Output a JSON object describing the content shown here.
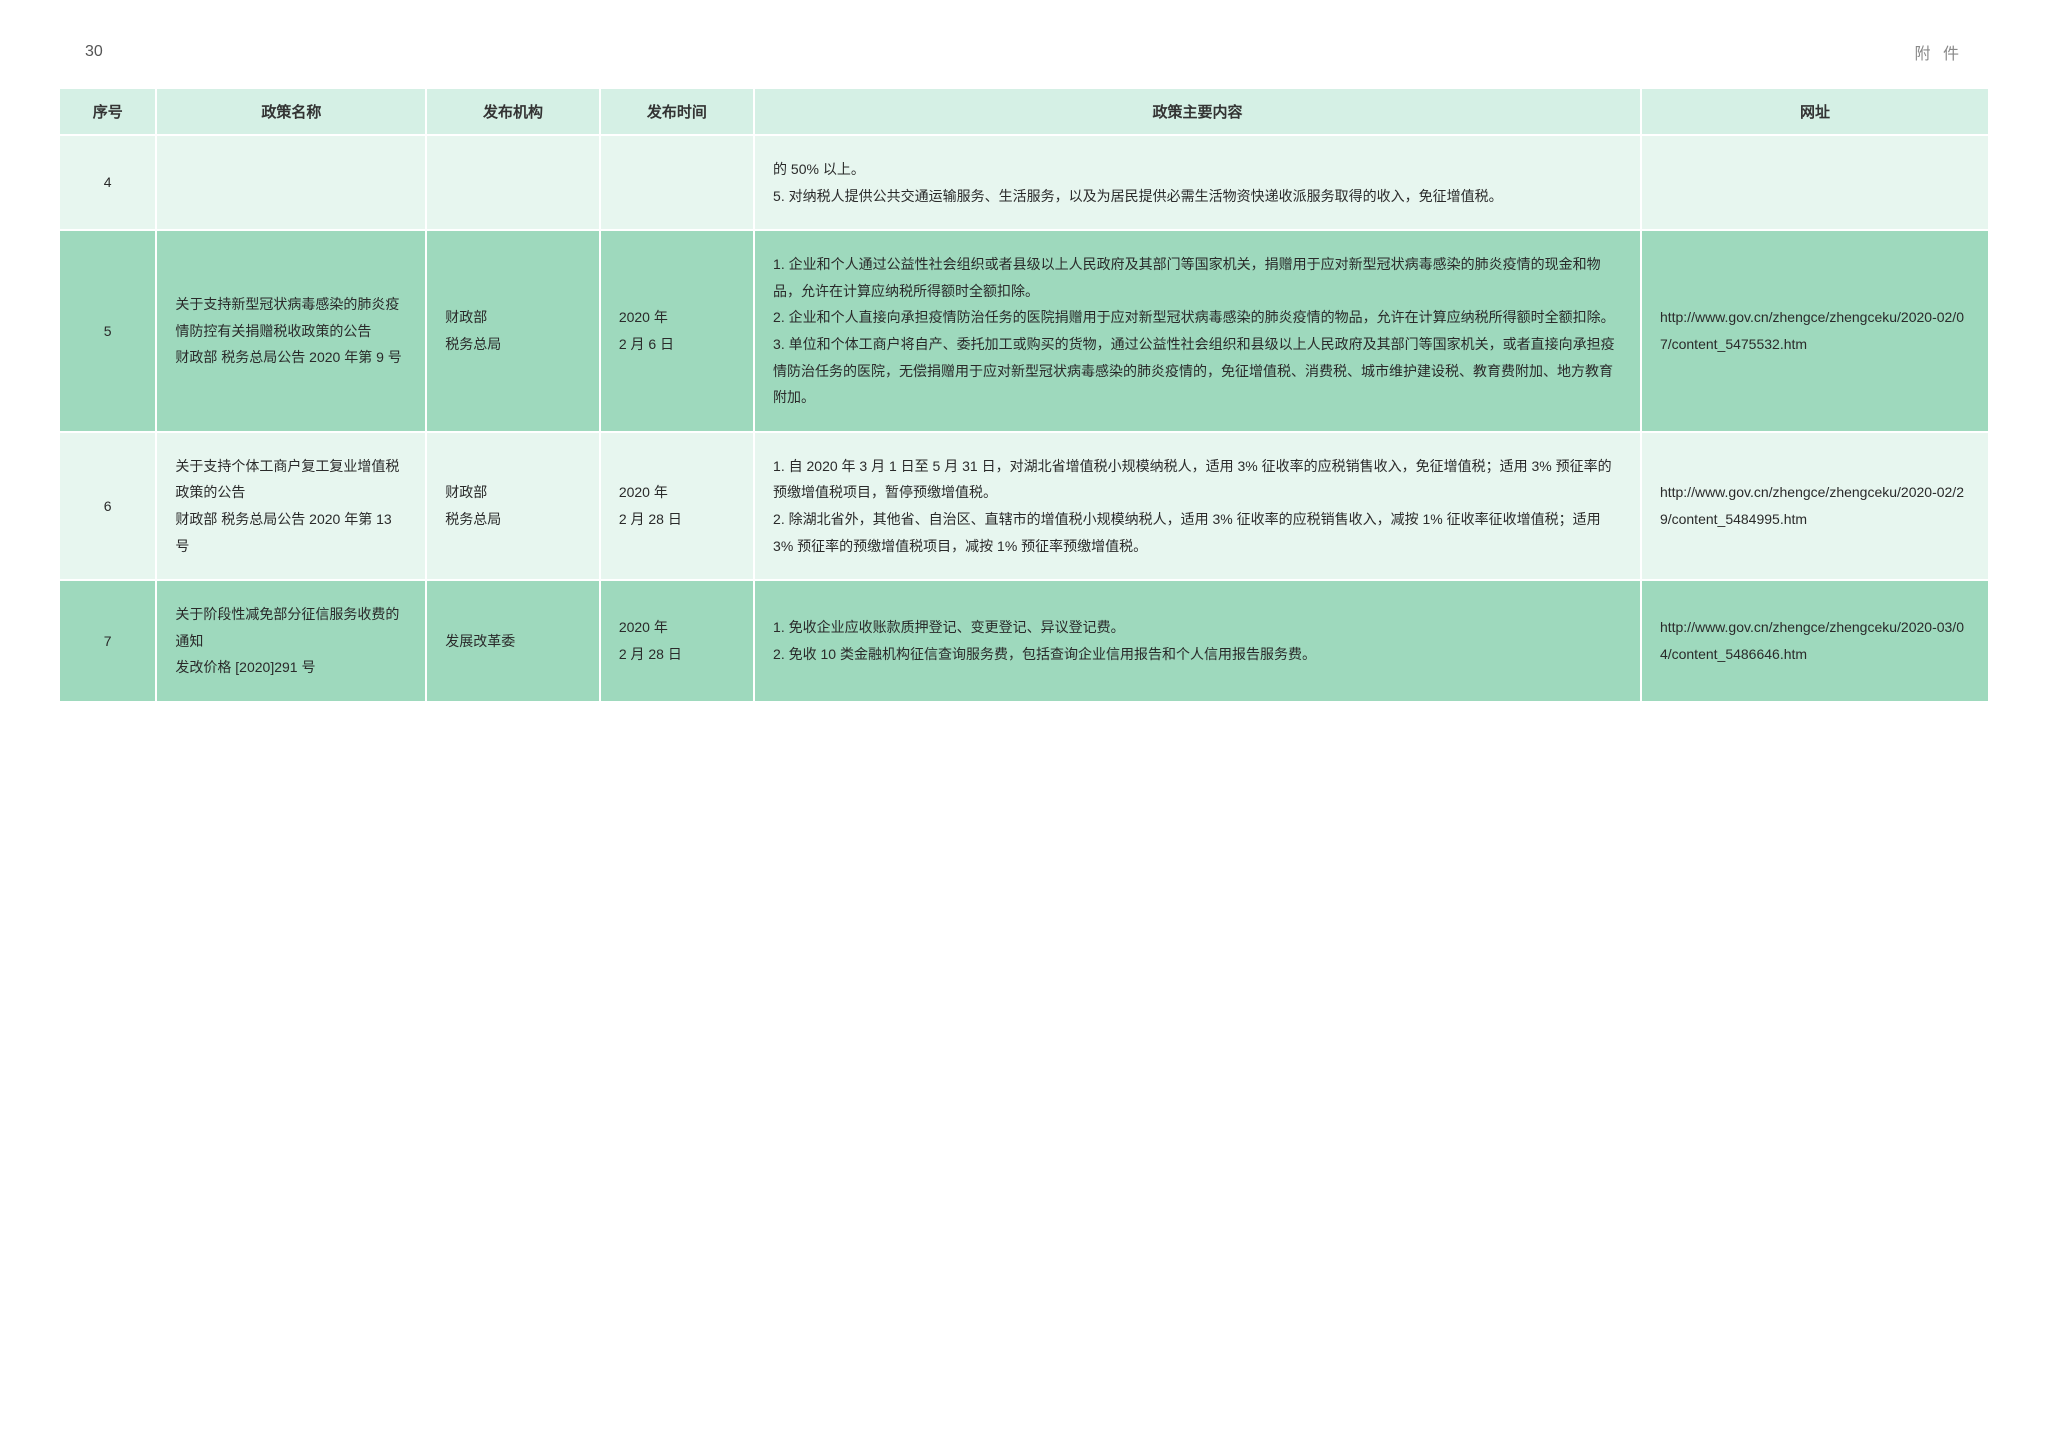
{
  "pageNumber": "30",
  "pageLabel": "附 件",
  "colors": {
    "header_bg": "#d5f0e5",
    "row_light": "#e7f6ef",
    "row_dark": "#9ed9bd",
    "text": "#333333",
    "page_label": "#888888"
  },
  "columns": [
    {
      "key": "idx",
      "label": "序号",
      "width": "5%"
    },
    {
      "key": "name",
      "label": "政策名称",
      "width": "14%"
    },
    {
      "key": "org",
      "label": "发布机构",
      "width": "9%"
    },
    {
      "key": "date",
      "label": "发布时间",
      "width": "8%"
    },
    {
      "key": "body",
      "label": "政策主要内容",
      "width": "46%"
    },
    {
      "key": "url",
      "label": "网址",
      "width": "18%"
    }
  ],
  "rows": [
    {
      "shade": "light",
      "idx": "4",
      "name": "",
      "org": "",
      "date": "",
      "body": "的 50% 以上。\n5. 对纳税人提供公共交通运输服务、生活服务，以及为居民提供必需生活物资快递收派服务取得的收入，免征增值税。",
      "url": ""
    },
    {
      "shade": "dark",
      "idx": "5",
      "name": "关于支持新型冠状病毒感染的肺炎疫情防控有关捐赠税收政策的公告\n财政部 税务总局公告 2020 年第 9 号",
      "org": "财政部\n税务总局",
      "date": "2020 年\n2 月 6 日",
      "body": "1. 企业和个人通过公益性社会组织或者县级以上人民政府及其部门等国家机关，捐赠用于应对新型冠状病毒感染的肺炎疫情的现金和物品，允许在计算应纳税所得额时全额扣除。\n2. 企业和个人直接向承担疫情防治任务的医院捐赠用于应对新型冠状病毒感染的肺炎疫情的物品，允许在计算应纳税所得额时全额扣除。\n3. 单位和个体工商户将自产、委托加工或购买的货物，通过公益性社会组织和县级以上人民政府及其部门等国家机关，或者直接向承担疫情防治任务的医院，无偿捐赠用于应对新型冠状病毒感染的肺炎疫情的，免征增值税、消费税、城市维护建设税、教育费附加、地方教育附加。",
      "url": "http://www.gov.cn/zhengce/zhengceku/2020-02/07/content_5475532.htm"
    },
    {
      "shade": "light",
      "idx": "6",
      "name": "关于支持个体工商户复工复业增值税政策的公告\n财政部 税务总局公告 2020 年第 13 号",
      "org": "财政部\n税务总局",
      "date": "2020 年\n2 月 28 日",
      "body": "1. 自 2020 年 3 月 1 日至 5 月 31 日，对湖北省增值税小规模纳税人，适用 3% 征收率的应税销售收入，免征增值税；适用 3% 预征率的预缴增值税项目，暂停预缴增值税。\n2. 除湖北省外，其他省、自治区、直辖市的增值税小规模纳税人，适用 3% 征收率的应税销售收入，减按 1% 征收率征收增值税；适用 3% 预征率的预缴增值税项目，减按 1% 预征率预缴增值税。",
      "url": "http://www.gov.cn/zhengce/zhengceku/2020-02/29/content_5484995.htm"
    },
    {
      "shade": "dark",
      "idx": "7",
      "name": "关于阶段性减免部分征信服务收费的通知\n发改价格 [2020]291 号",
      "org": "发展改革委",
      "date": "2020 年\n2 月 28 日",
      "body": "1. 免收企业应收账款质押登记、变更登记、异议登记费。\n2. 免收 10 类金融机构征信查询服务费，包括查询企业信用报告和个人信用报告服务费。",
      "url": "http://www.gov.cn/zhengce/zhengceku/2020-03/04/content_5486646.htm"
    }
  ]
}
